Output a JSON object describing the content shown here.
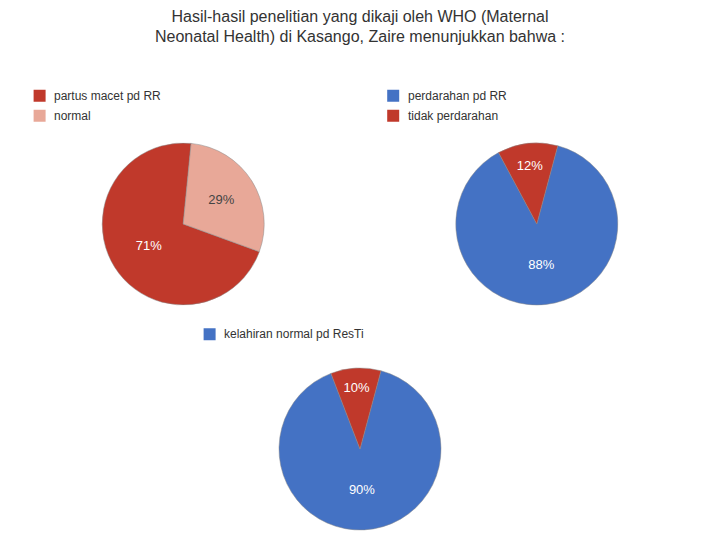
{
  "chart_data": [
    {
      "type": "pie",
      "title": "Hasil-hasil penelitian yang dikaji oleh WHO (Maternal\nNeonatal Health) di Kasango, Zaire menunjukkan bahwa :",
      "categories": [
        "partus macet pd RR",
        "normal"
      ],
      "values": [
        71,
        29
      ],
      "value_labels": [
        "71%",
        "29%"
      ],
      "colors": [
        "#C0392B",
        "#E8A898"
      ],
      "data_labels": true,
      "legend": "upper left"
    },
    {
      "type": "pie",
      "categories": [
        "perdarahan pd RR",
        "tidak perdarahan"
      ],
      "values": [
        88,
        12
      ],
      "value_labels": [
        "88%",
        "12%"
      ],
      "colors": [
        "#4472C4",
        "#C0392B"
      ],
      "data_labels": true,
      "legend": "upper left"
    },
    {
      "type": "pie",
      "categories": [
        "kelahiran normal pd ResTi",
        null
      ],
      "values": [
        90,
        10
      ],
      "value_labels": [
        "90%",
        "10%"
      ],
      "colors": [
        "#4472C4",
        "#C0392B"
      ],
      "data_labels": true,
      "legend": "upper left"
    }
  ]
}
